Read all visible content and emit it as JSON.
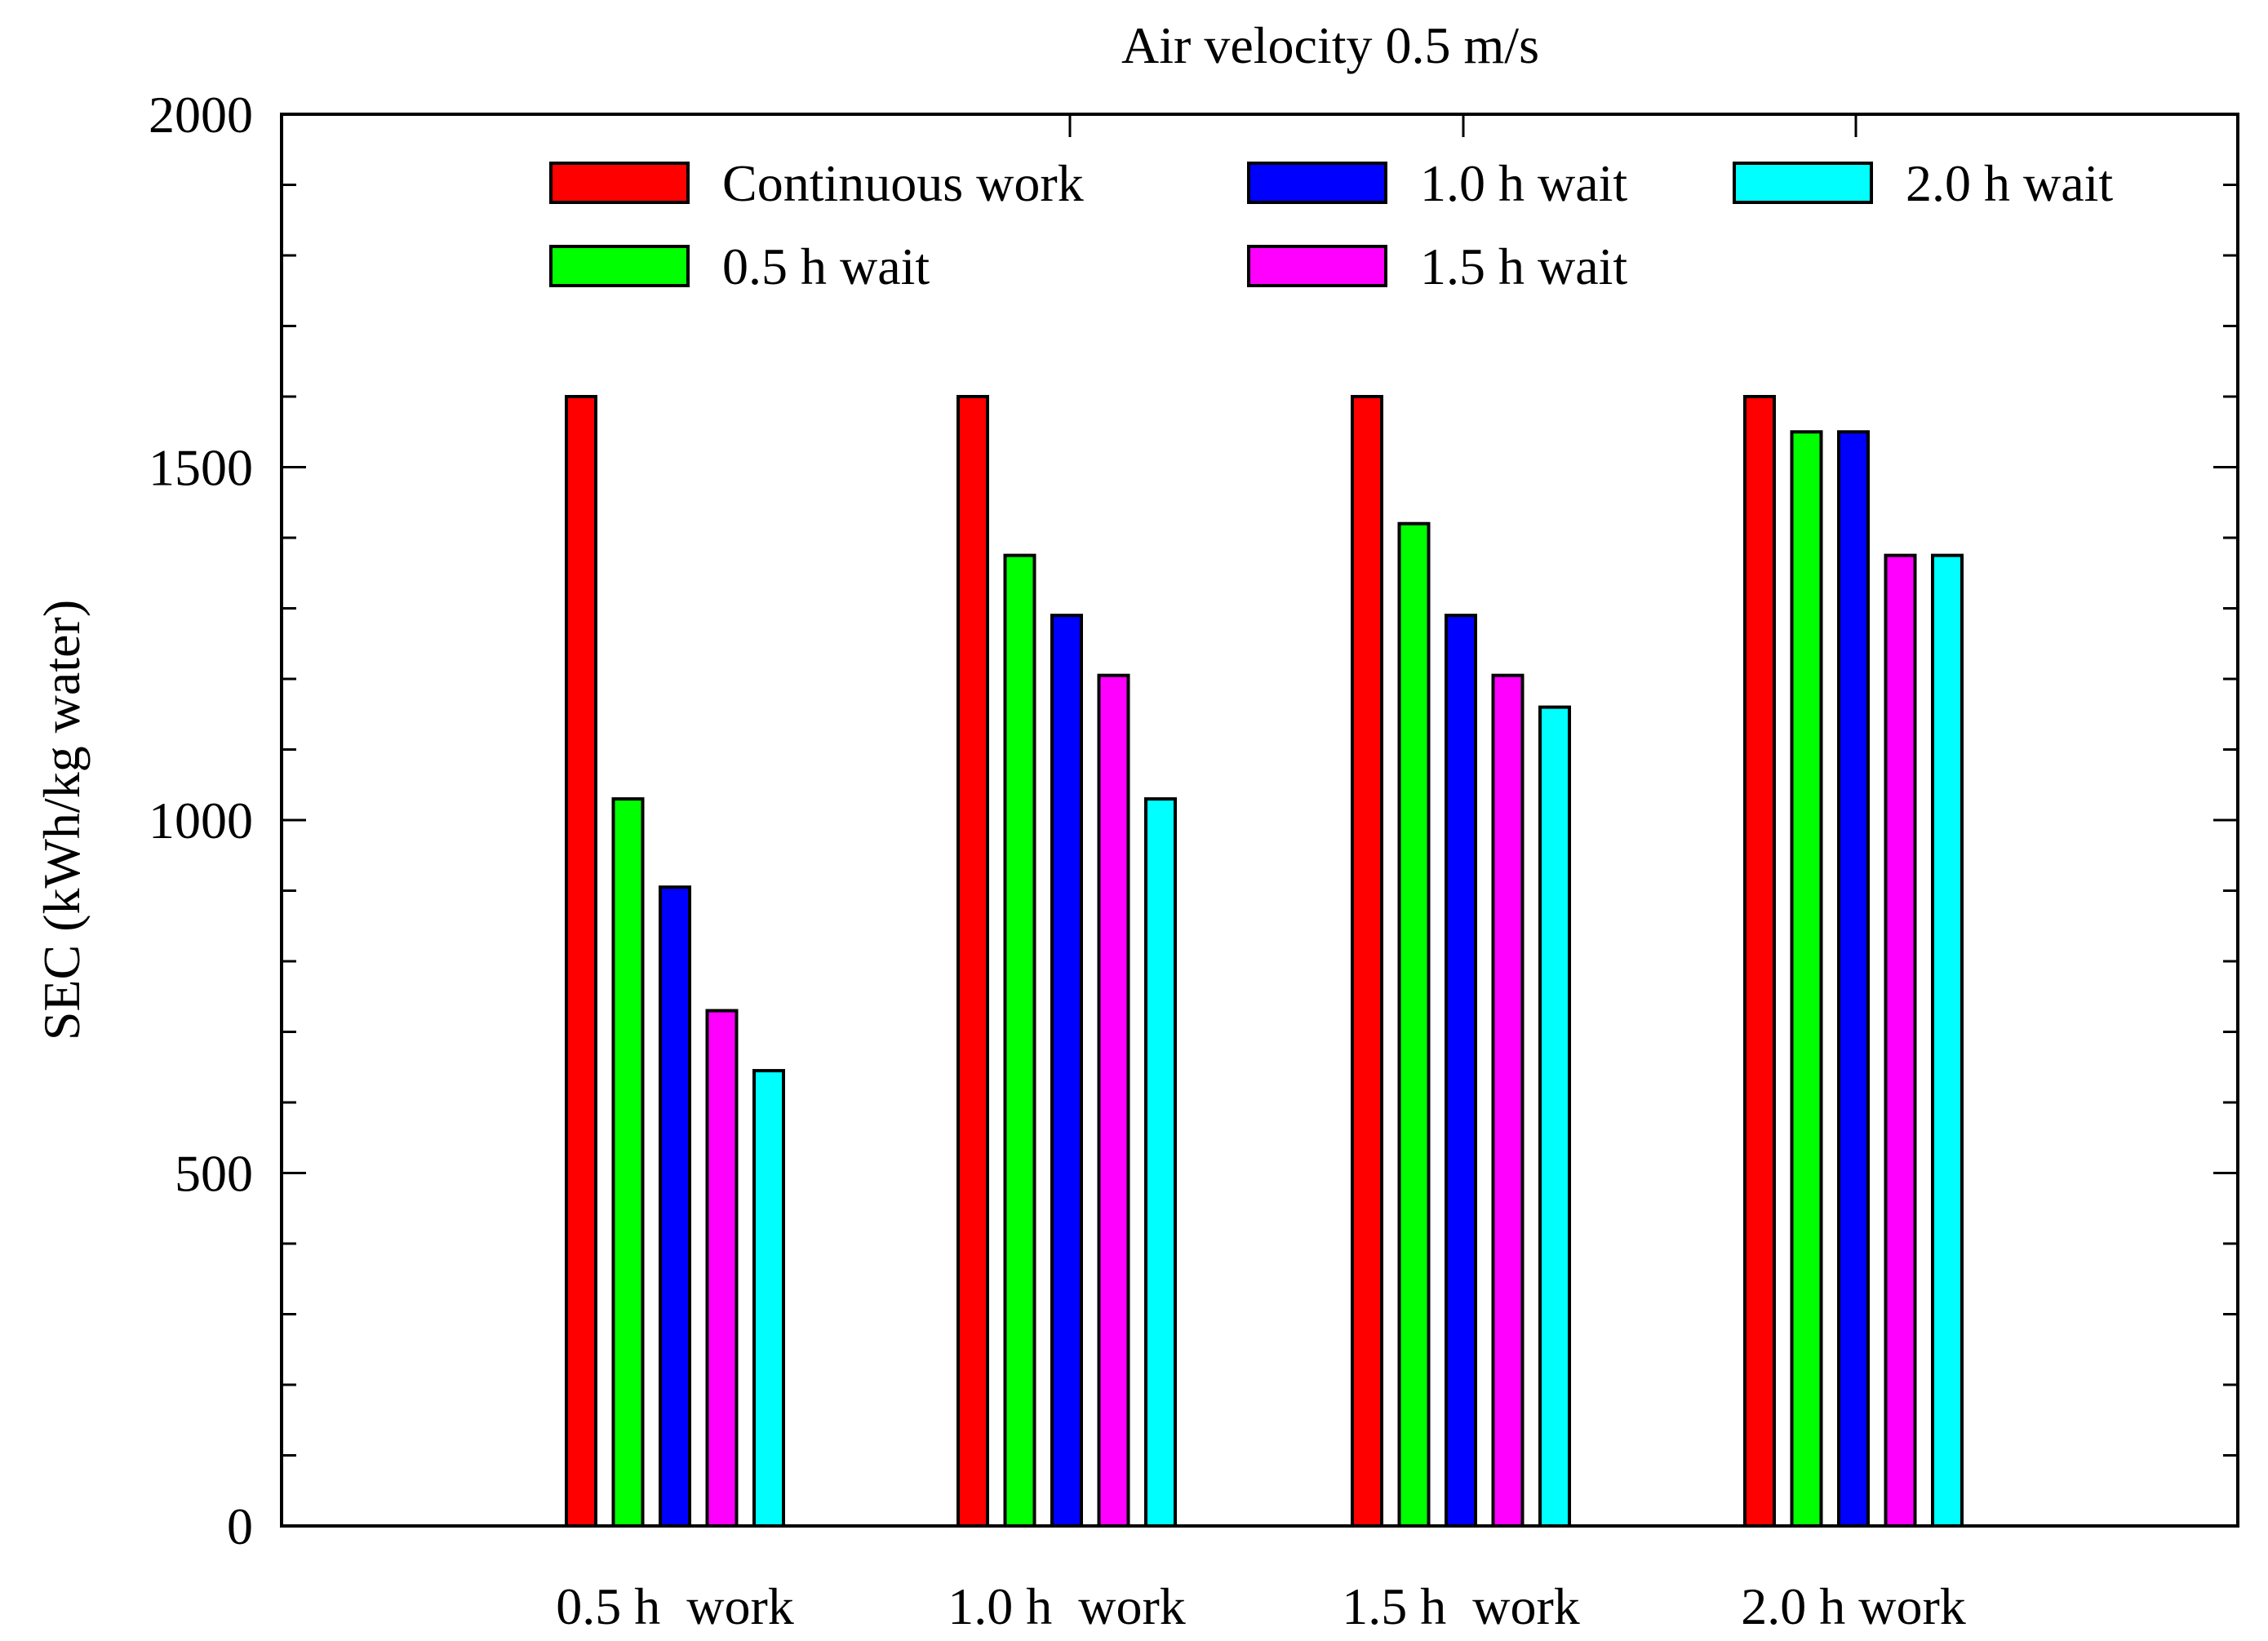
{
  "chart_data": {
    "type": "bar",
    "title": "Air velocity 0.5 m/s",
    "xlabel": "",
    "ylabel": "SEC (kWh/kg water)",
    "ylim": [
      0,
      2000
    ],
    "yticks": [
      "0",
      "500",
      "1000",
      "1500",
      "2000"
    ],
    "grid": false,
    "legend_position": "top",
    "categories": [
      "0.5 h  work",
      "1.0 h  work",
      "1.5 h  work",
      "2.0 h work"
    ],
    "series": [
      {
        "name": "Continuous work",
        "color": "#ff0000",
        "values": [
          1600,
          1600,
          1600,
          1600
        ]
      },
      {
        "name": "0.5 h wait",
        "color": "#00ff00",
        "values": [
          1030,
          1375,
          1420,
          1550
        ]
      },
      {
        "name": "1.0 h wait",
        "color": "#0000ff",
        "values": [
          905,
          1290,
          1290,
          1550
        ]
      },
      {
        "name": "1.5 h wait",
        "color": "#ff00ff",
        "values": [
          730,
          1205,
          1205,
          1375
        ]
      },
      {
        "name": "2.0 h wait",
        "color": "#00ffff",
        "values": [
          645,
          1030,
          1160,
          1375
        ]
      }
    ]
  }
}
